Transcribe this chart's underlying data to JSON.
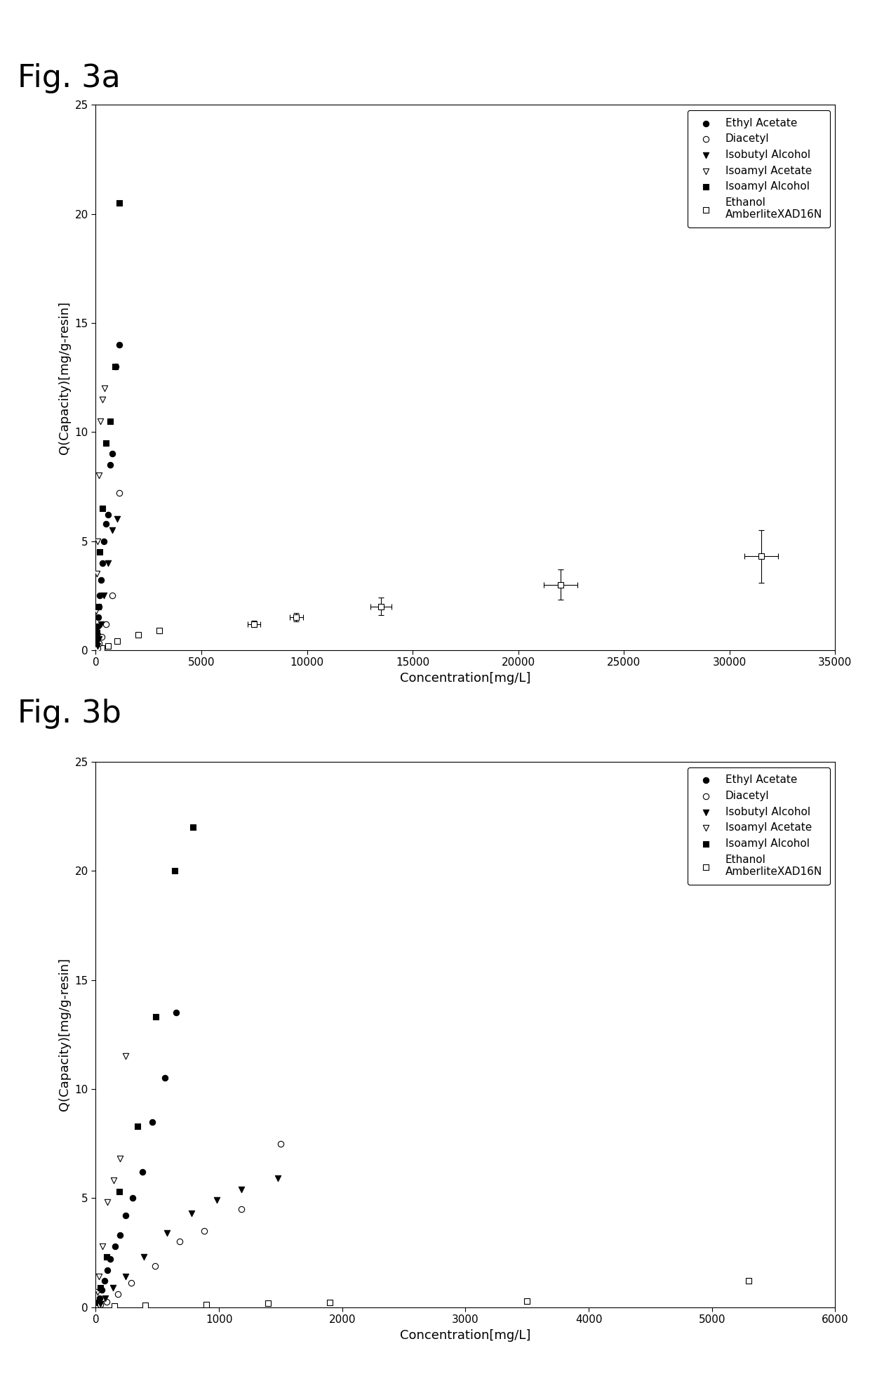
{
  "fig3a": {
    "title": "Fig. 3a",
    "xlabel": "Concentration[mg/L]",
    "ylabel": "Q(Capacity)[mg/g-resin]",
    "xlim": [
      0,
      35000
    ],
    "ylim": [
      0,
      25
    ],
    "xticks": [
      0,
      5000,
      10000,
      15000,
      20000,
      25000,
      30000,
      35000
    ],
    "yticks": [
      0,
      5,
      10,
      15,
      20,
      25
    ],
    "ethyl_acetate": {
      "x": [
        30,
        60,
        80,
        100,
        130,
        160,
        200,
        250,
        320,
        400,
        500,
        600,
        700,
        800,
        950,
        1100
      ],
      "y": [
        0.2,
        0.4,
        0.7,
        1.1,
        1.5,
        2.0,
        2.5,
        3.2,
        4.0,
        5.0,
        5.8,
        6.2,
        8.5,
        9.0,
        13.0,
        14.0
      ]
    },
    "diacetyl": {
      "x": [
        80,
        150,
        300,
        500,
        800,
        1100
      ],
      "y": [
        0.1,
        0.3,
        0.6,
        1.2,
        2.5,
        7.2
      ]
    },
    "isobutyl_alcohol": {
      "x": [
        80,
        150,
        250,
        400,
        600,
        800,
        1000
      ],
      "y": [
        0.2,
        0.5,
        1.2,
        2.5,
        4.0,
        5.5,
        6.0
      ]
    },
    "isoamyl_acetate": {
      "x": [
        15,
        30,
        55,
        90,
        140,
        220,
        320,
        430
      ],
      "y": [
        0.8,
        1.8,
        3.5,
        5.0,
        8.0,
        10.5,
        11.5,
        12.0
      ]
    },
    "isoamyl_alcohol": {
      "x": [
        30,
        60,
        120,
        200,
        320,
        500,
        700,
        900,
        1100
      ],
      "y": [
        0.3,
        0.8,
        2.0,
        4.5,
        6.5,
        9.5,
        10.5,
        13.0,
        20.5
      ]
    },
    "ethanol": {
      "x": [
        300,
        600,
        1000,
        2000,
        3000,
        7500,
        9500,
        13500,
        22000,
        31500
      ],
      "y": [
        0.1,
        0.2,
        0.4,
        0.7,
        0.9,
        1.2,
        1.5,
        2.0,
        3.0,
        4.3
      ],
      "yerr": [
        0.0,
        0.0,
        0.0,
        0.0,
        0.0,
        0.15,
        0.2,
        0.4,
        0.7,
        1.2
      ],
      "xerr": [
        0,
        0,
        0,
        0,
        0,
        300,
        300,
        500,
        800,
        800
      ]
    }
  },
  "fig3b": {
    "title": "Fig. 3b",
    "xlabel": "Concentration[mg/L]",
    "ylabel": "Q(Capacity)[mg/g-resin]",
    "xlim": [
      0,
      6000
    ],
    "ylim": [
      0,
      25
    ],
    "xticks": [
      0,
      1000,
      2000,
      3000,
      4000,
      5000,
      6000
    ],
    "yticks": [
      0,
      5,
      10,
      15,
      20,
      25
    ],
    "ethyl_acetate": {
      "x": [
        15,
        30,
        50,
        70,
        95,
        120,
        155,
        195,
        245,
        300,
        380,
        460,
        560,
        650
      ],
      "y": [
        0.2,
        0.4,
        0.8,
        1.2,
        1.7,
        2.2,
        2.8,
        3.3,
        4.2,
        5.0,
        6.2,
        8.5,
        10.5,
        13.5
      ]
    },
    "diacetyl": {
      "x": [
        40,
        90,
        180,
        290,
        480,
        680,
        880,
        1180,
        1500
      ],
      "y": [
        0.1,
        0.25,
        0.6,
        1.1,
        1.9,
        3.0,
        3.5,
        4.5,
        7.5
      ]
    },
    "isobutyl_alcohol": {
      "x": [
        35,
        75,
        140,
        240,
        390,
        580,
        780,
        980,
        1180,
        1480
      ],
      "y": [
        0.15,
        0.4,
        0.9,
        1.4,
        2.3,
        3.4,
        4.3,
        4.9,
        5.4,
        5.9
      ]
    },
    "isoamyl_acetate": {
      "x": [
        12,
        25,
        55,
        95,
        145,
        195,
        245
      ],
      "y": [
        0.7,
        1.4,
        2.8,
        4.8,
        5.8,
        6.8,
        11.5
      ]
    },
    "isoamyl_alcohol": {
      "x": [
        40,
        90,
        190,
        340,
        490,
        640,
        790
      ],
      "y": [
        0.9,
        2.3,
        5.3,
        8.3,
        13.3,
        20.0,
        22.0
      ]
    },
    "ethanol": {
      "x": [
        150,
        400,
        900,
        1400,
        1900,
        3500,
        5300
      ],
      "y": [
        0.05,
        0.08,
        0.12,
        0.18,
        0.22,
        0.28,
        1.2
      ]
    }
  },
  "marker_size": 6,
  "background_color": "#ffffff",
  "plot_bg": "#ffffff",
  "font_size_title": 32,
  "font_size_label": 13,
  "font_size_tick": 11,
  "font_size_legend": 11
}
